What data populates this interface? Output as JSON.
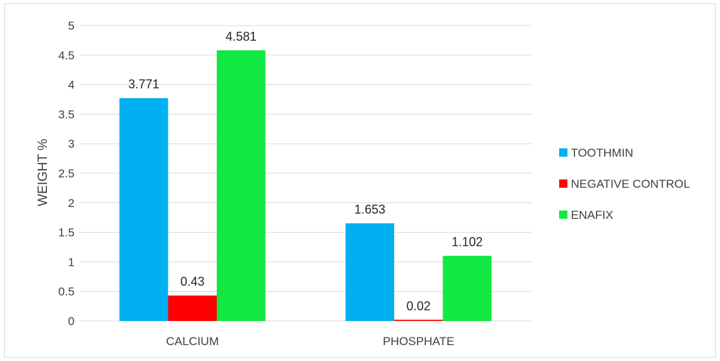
{
  "chart_data": {
    "type": "bar",
    "title": "",
    "xlabel": "",
    "ylabel": "WEIGHT %",
    "categories": [
      "CALCIUM",
      "PHOSPHATE"
    ],
    "series": [
      {
        "name": "TOOTHMIN",
        "values": [
          3.771,
          1.653
        ],
        "labels": [
          "3.771",
          "1.653"
        ],
        "color": "#00b0f0"
      },
      {
        "name": "NEGATIVE CONTROL",
        "values": [
          0.43,
          0.02
        ],
        "labels": [
          "0.43",
          "0.02"
        ],
        "color": "#ff0000"
      },
      {
        "name": "ENAFIX",
        "values": [
          4.581,
          1.102
        ],
        "labels": [
          "4.581",
          "1.102"
        ],
        "color": "#12e842"
      }
    ],
    "ylim": [
      0,
      5
    ],
    "yticks": [
      0,
      0.5,
      1,
      1.5,
      2,
      2.5,
      3,
      3.5,
      4,
      4.5,
      5
    ],
    "ytick_labels": [
      "0",
      "0.5",
      "1",
      "1.5",
      "2",
      "2.5",
      "3",
      "3.5",
      "4",
      "4.5",
      "5"
    ],
    "grid": true,
    "legend_position": "right"
  }
}
